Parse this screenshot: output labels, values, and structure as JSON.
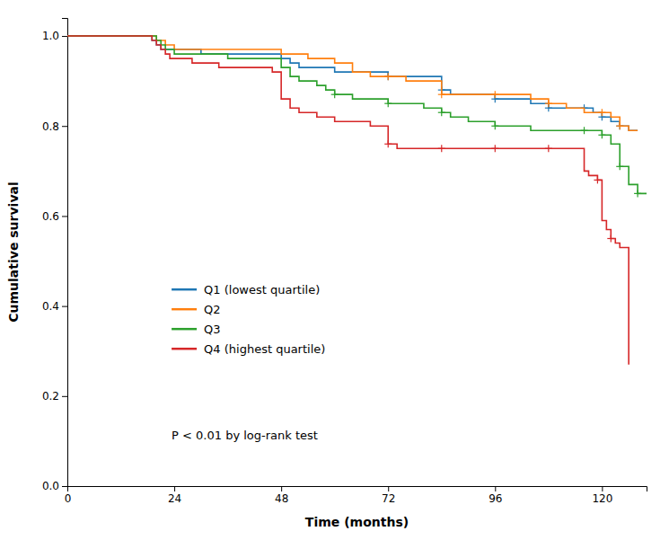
{
  "chart_data": {
    "type": "step",
    "xlabel": "Time (months)",
    "ylabel": "Cumulative survival",
    "xlim": [
      0,
      130
    ],
    "ylim": [
      0.0,
      1.04
    ],
    "xticks": [
      0,
      24,
      48,
      72,
      96,
      120
    ],
    "yticks": [
      {
        "value": 0.0,
        "label": "0.0"
      },
      0.2,
      0.4,
      0.6,
      0.8,
      {
        "value": 1.0,
        "label": "1.0"
      }
    ],
    "grid": false,
    "legend": "lower left",
    "series": [
      {
        "name": "Q1 (lowest quartile)",
        "x": [
          0,
          18,
          19,
          20,
          21,
          22,
          23,
          24,
          26,
          28,
          30,
          36,
          40,
          44,
          48,
          50,
          52,
          54,
          56,
          58,
          60,
          64,
          68,
          72,
          76,
          80,
          84,
          86,
          88,
          90,
          92,
          96,
          100,
          104,
          108,
          112,
          116,
          118,
          120,
          122,
          124,
          126,
          128
        ],
        "values": [
          1.0,
          1.0,
          0.99,
          0.98,
          0.97,
          0.97,
          0.97,
          0.97,
          0.97,
          0.97,
          0.96,
          0.96,
          0.96,
          0.96,
          0.95,
          0.94,
          0.93,
          0.93,
          0.93,
          0.93,
          0.92,
          0.92,
          0.92,
          0.91,
          0.91,
          0.91,
          0.88,
          0.87,
          0.87,
          0.87,
          0.87,
          0.86,
          0.86,
          0.85,
          0.84,
          0.84,
          0.84,
          0.83,
          0.82,
          0.81,
          0.8,
          0.79,
          0.79
        ],
        "censored": {
          "marker": "plus",
          "x": [
            72,
            84,
            96,
            108,
            116,
            120,
            124
          ],
          "values": [
            0.91,
            0.88,
            0.86,
            0.84,
            0.84,
            0.82,
            0.8
          ]
        }
      },
      {
        "name": "Q2",
        "x": [
          0,
          18,
          19,
          20,
          21,
          22,
          23,
          24,
          26,
          28,
          30,
          36,
          40,
          44,
          48,
          50,
          52,
          54,
          56,
          58,
          60,
          64,
          68,
          72,
          76,
          80,
          84,
          86,
          88,
          90,
          92,
          96,
          100,
          104,
          108,
          112,
          116,
          118,
          120,
          122,
          124,
          126,
          128
        ],
        "values": [
          1.0,
          1.0,
          1.0,
          0.99,
          0.99,
          0.98,
          0.98,
          0.97,
          0.97,
          0.97,
          0.97,
          0.97,
          0.97,
          0.97,
          0.96,
          0.96,
          0.96,
          0.95,
          0.95,
          0.95,
          0.94,
          0.92,
          0.91,
          0.91,
          0.9,
          0.9,
          0.87,
          0.87,
          0.87,
          0.87,
          0.87,
          0.87,
          0.87,
          0.86,
          0.85,
          0.84,
          0.83,
          0.83,
          0.83,
          0.82,
          0.8,
          0.79,
          0.79
        ],
        "censored": {
          "marker": "plus",
          "x": [
            72,
            84,
            96,
            108,
            120,
            124
          ],
          "values": [
            0.91,
            0.87,
            0.87,
            0.85,
            0.83,
            0.8
          ]
        }
      },
      {
        "name": "Q3",
        "x": [
          0,
          18,
          20,
          21,
          22,
          23,
          24,
          26,
          28,
          30,
          36,
          40,
          44,
          48,
          50,
          52,
          54,
          56,
          58,
          60,
          64,
          68,
          72,
          76,
          80,
          84,
          86,
          88,
          90,
          92,
          96,
          100,
          104,
          108,
          112,
          116,
          118,
          120,
          122,
          124,
          126,
          128,
          130
        ],
        "values": [
          1.0,
          1.0,
          0.99,
          0.98,
          0.97,
          0.97,
          0.96,
          0.96,
          0.96,
          0.96,
          0.95,
          0.95,
          0.95,
          0.93,
          0.91,
          0.9,
          0.9,
          0.89,
          0.88,
          0.87,
          0.86,
          0.86,
          0.85,
          0.85,
          0.84,
          0.83,
          0.82,
          0.82,
          0.81,
          0.81,
          0.8,
          0.8,
          0.79,
          0.79,
          0.79,
          0.79,
          0.79,
          0.78,
          0.76,
          0.71,
          0.67,
          0.65,
          0.65
        ],
        "censored": {
          "marker": "plus",
          "x": [
            60,
            72,
            84,
            96,
            116,
            120,
            124,
            128
          ],
          "values": [
            0.87,
            0.85,
            0.83,
            0.8,
            0.79,
            0.78,
            0.71,
            0.65
          ]
        }
      },
      {
        "name": "Q4 (highest quartile)",
        "x": [
          0,
          18,
          19,
          20,
          21,
          22,
          23,
          24,
          28,
          30,
          34,
          36,
          40,
          44,
          46,
          48,
          50,
          52,
          54,
          56,
          58,
          60,
          64,
          68,
          72,
          74,
          76,
          78,
          80,
          84,
          88,
          92,
          96,
          100,
          104,
          108,
          112,
          116,
          117,
          118,
          119,
          120,
          121,
          122,
          123,
          124,
          126
        ],
        "values": [
          1.0,
          1.0,
          0.99,
          0.98,
          0.97,
          0.96,
          0.95,
          0.95,
          0.94,
          0.94,
          0.93,
          0.93,
          0.93,
          0.93,
          0.92,
          0.86,
          0.84,
          0.83,
          0.83,
          0.82,
          0.82,
          0.81,
          0.81,
          0.8,
          0.76,
          0.75,
          0.75,
          0.75,
          0.75,
          0.75,
          0.75,
          0.75,
          0.75,
          0.75,
          0.75,
          0.75,
          0.75,
          0.7,
          0.69,
          0.69,
          0.68,
          0.59,
          0.57,
          0.55,
          0.54,
          0.53,
          0.27
        ],
        "censored": {
          "marker": "plus",
          "x": [
            72,
            84,
            96,
            108,
            119,
            122
          ],
          "values": [
            0.76,
            0.75,
            0.75,
            0.75,
            0.68,
            0.55
          ]
        }
      }
    ],
    "annotations": [
      {
        "text": "P < 0.01 by log-rank test"
      }
    ]
  }
}
